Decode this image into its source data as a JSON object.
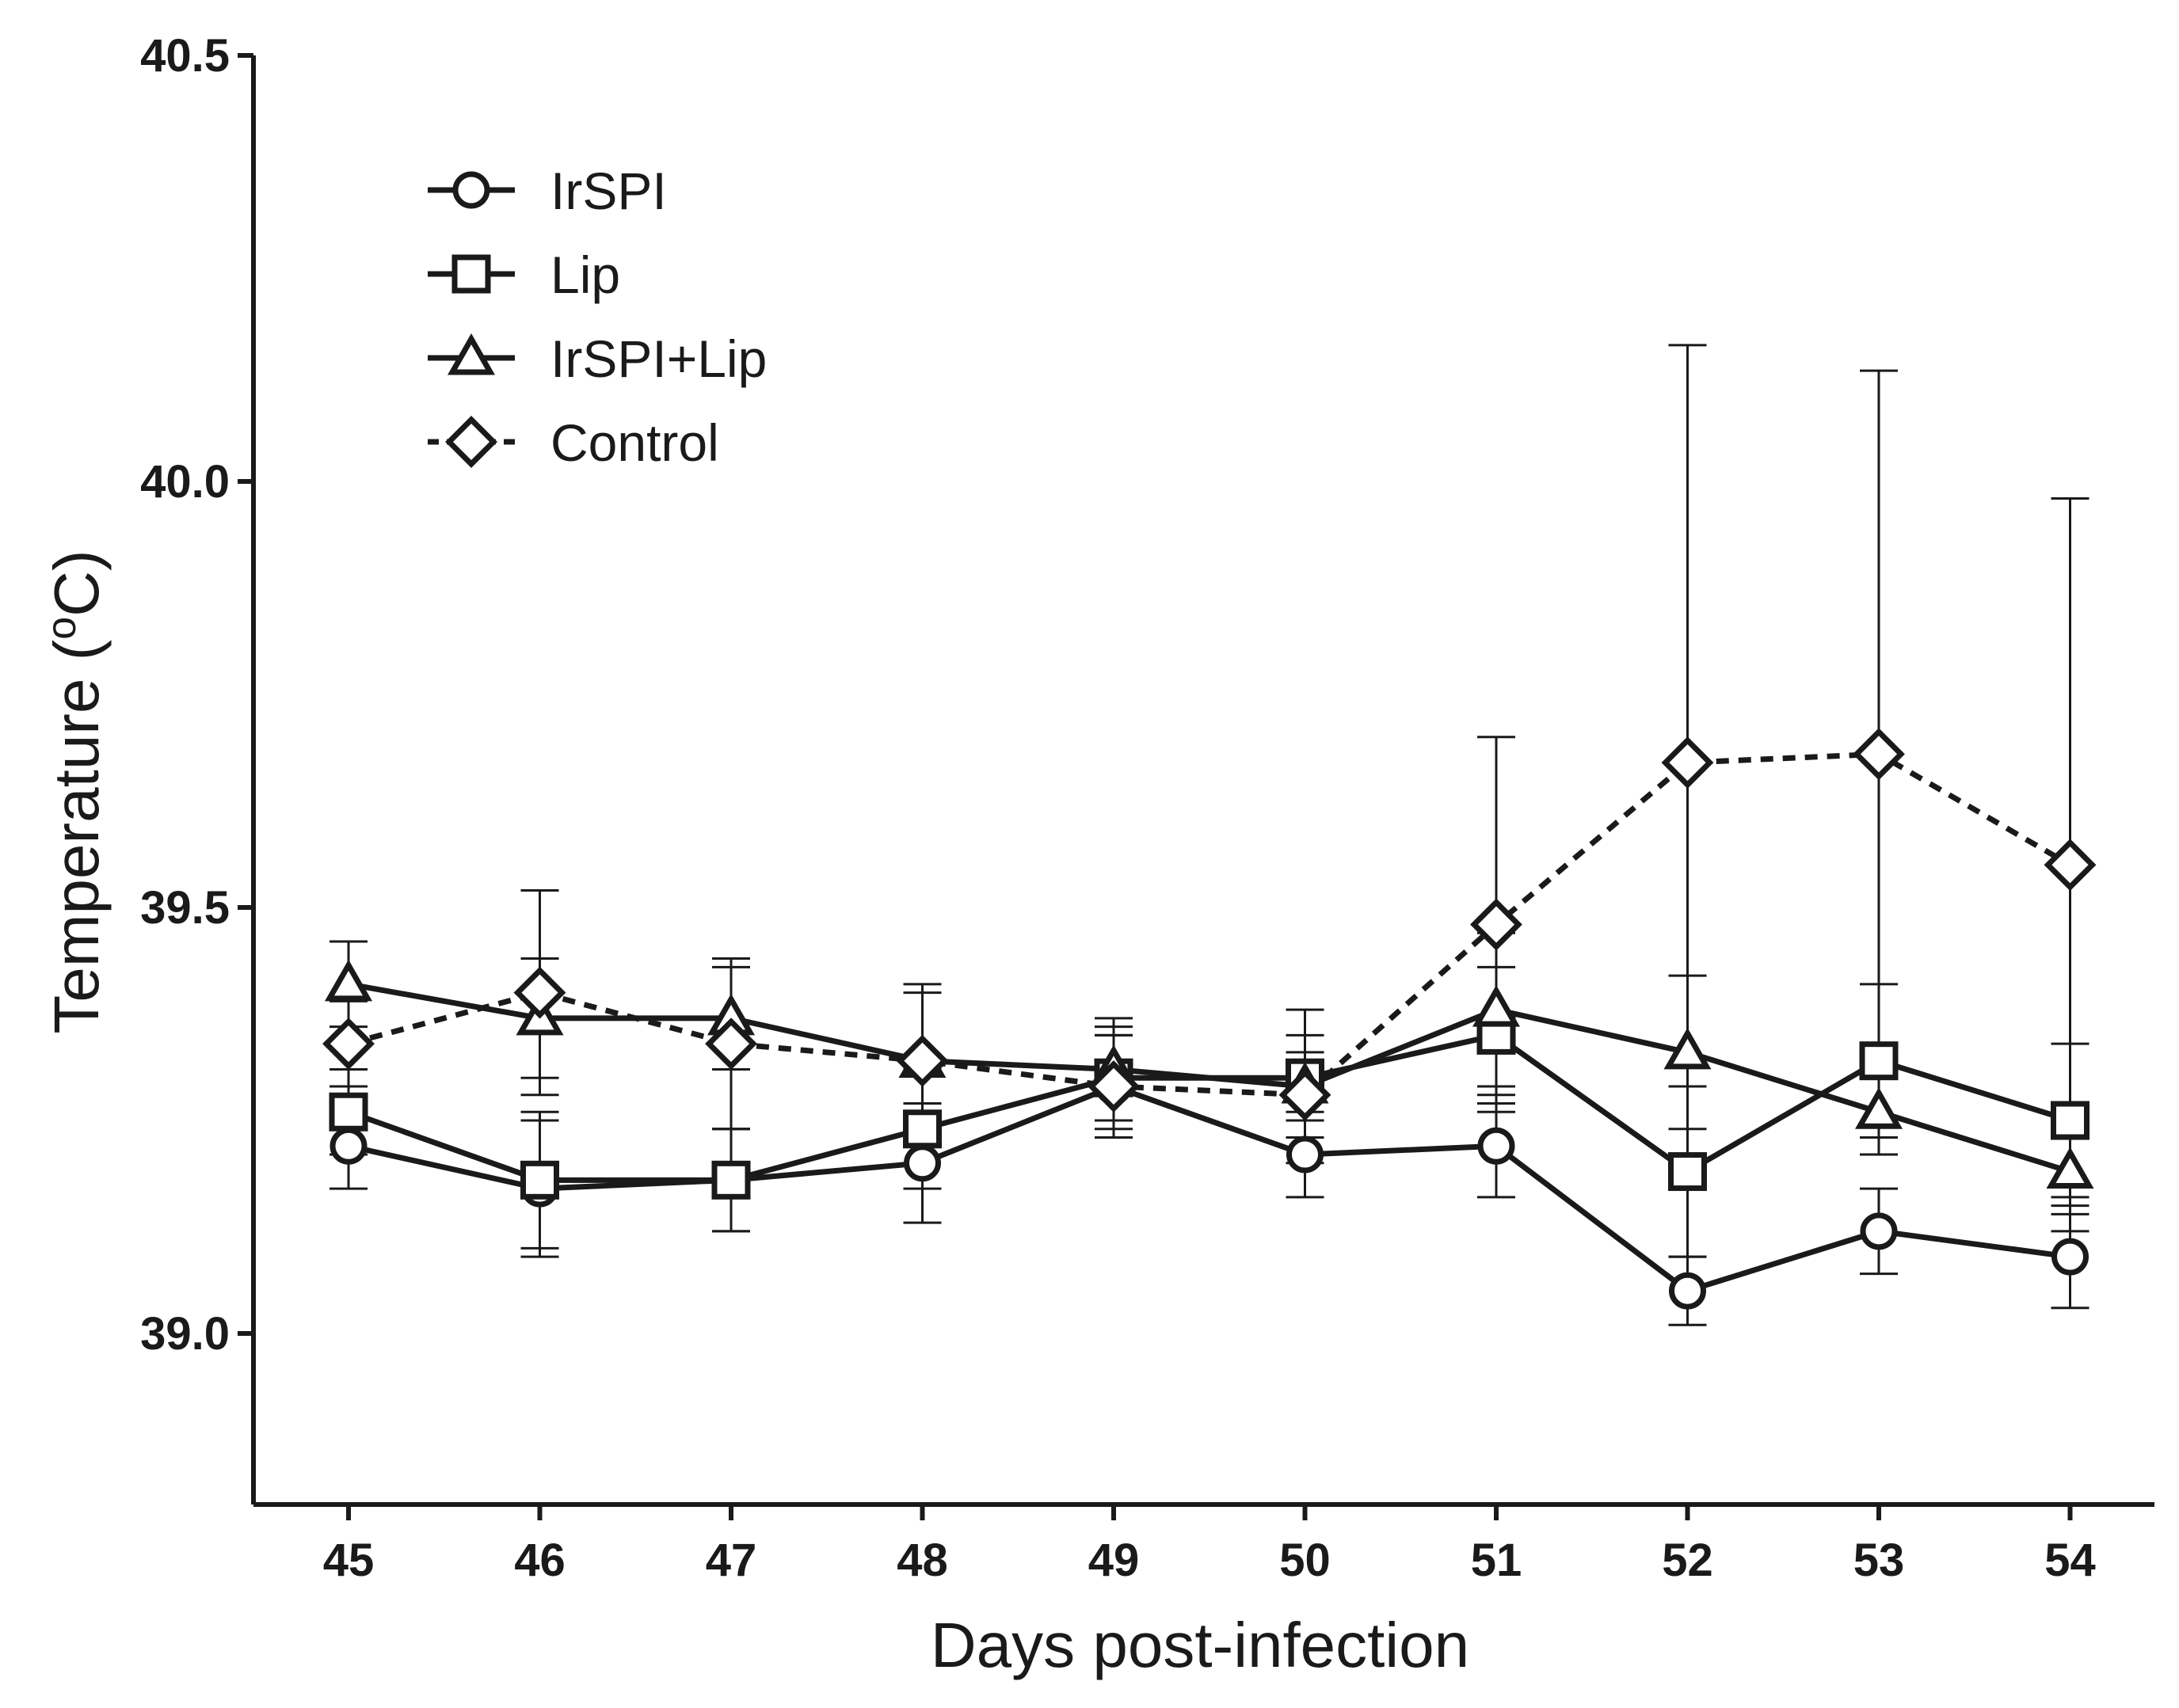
{
  "chart_data": {
    "type": "line",
    "xlabel": "Days post-infection",
    "ylabel": "Temperature (°C)",
    "ylabel_parts": {
      "prefix": "Temperature (",
      "superscript": "o",
      "suffix": "C)"
    },
    "x": [
      45,
      46,
      47,
      48,
      49,
      50,
      51,
      52,
      53,
      54
    ],
    "xlim": [
      44.5,
      54.5
    ],
    "ylim": [
      38.8,
      40.5
    ],
    "yticks": [
      39.0,
      39.5,
      40.0,
      40.5
    ],
    "ytick_labels": [
      "39.0",
      "39.5",
      "40.0",
      "40.5"
    ],
    "xtick_labels": [
      "45",
      "46",
      "47",
      "48",
      "49",
      "50",
      "51",
      "52",
      "53",
      "54"
    ],
    "legend_position": "top-left",
    "series": [
      {
        "name": "IrSPI",
        "marker": "circle",
        "line": "solid",
        "values": [
          39.22,
          39.17,
          39.18,
          39.2,
          39.29,
          39.21,
          39.22,
          39.05,
          39.12,
          39.09
        ],
        "errors": [
          0.05,
          0.08,
          0.06,
          0.07,
          0.06,
          0.05,
          0.06,
          0.04,
          0.05,
          0.06
        ]
      },
      {
        "name": "Lip",
        "marker": "square",
        "line": "solid",
        "values": [
          39.26,
          39.18,
          39.18,
          39.24,
          39.3,
          39.3,
          39.35,
          39.19,
          39.32,
          39.25
        ],
        "errors": [
          0.05,
          0.08,
          0.06,
          0.07,
          0.06,
          0.05,
          0.08,
          0.1,
          0.09,
          0.09
        ]
      },
      {
        "name": "IrSPI+Lip",
        "marker": "triangle",
        "line": "solid",
        "values": [
          39.41,
          39.37,
          39.37,
          39.32,
          39.31,
          39.29,
          39.38,
          39.33,
          39.26,
          39.19
        ],
        "errors": [
          0.05,
          0.07,
          0.06,
          0.08,
          0.06,
          0.09,
          0.09,
          0.09,
          0.05,
          0.05
        ]
      },
      {
        "name": "Control",
        "marker": "diamond",
        "line": "dashed",
        "values": [
          39.34,
          39.4,
          39.34,
          39.32,
          39.29,
          39.28,
          39.48,
          39.67,
          39.68,
          39.55
        ],
        "errors": [
          0.05,
          0.12,
          0.1,
          0.09,
          0.06,
          0.05,
          0.22,
          0.49,
          0.45,
          0.43
        ]
      }
    ]
  }
}
